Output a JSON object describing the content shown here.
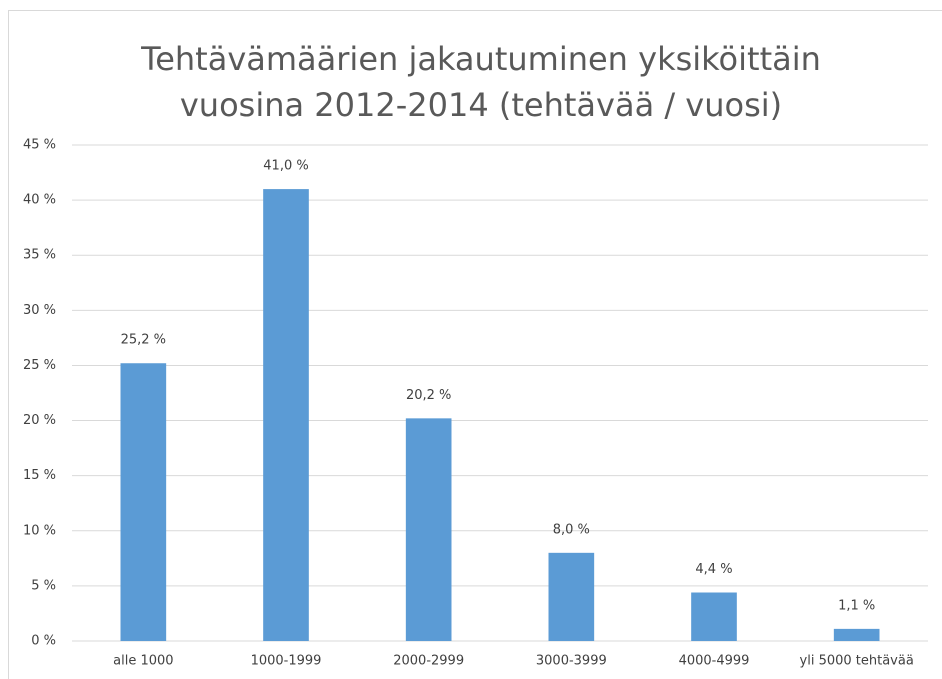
{
  "chart_data": {
    "type": "bar",
    "title": "Tehtävämäärien jakautuminen yksiköittäin vuosina 2012-2014 (tehtävää / vuosi)",
    "categories": [
      "alle 1000",
      "1000-1999",
      "2000-2999",
      "3000-3999",
      "4000-4999",
      "yli 5000 tehtävää"
    ],
    "values": [
      25.2,
      41.0,
      20.2,
      8.0,
      4.4,
      1.1
    ],
    "value_labels": [
      "25,2 %",
      "41,0 %",
      "20,2 %",
      "8,0 %",
      "4,4 %",
      "1,1 %"
    ],
    "color": "#5b9bd5",
    "ylim": [
      0,
      45
    ],
    "yticks": [
      {
        "value": 0,
        "label": "0 %"
      },
      {
        "value": 5,
        "label": "5 %"
      },
      {
        "value": 10,
        "label": "10 %"
      },
      {
        "value": 15,
        "label": "15 %"
      },
      {
        "value": 20,
        "label": "20 %"
      },
      {
        "value": 25,
        "label": "25 %"
      },
      {
        "value": 30,
        "label": "30 %"
      },
      {
        "value": 35,
        "label": "35 %"
      },
      {
        "value": 40,
        "label": "40 %"
      },
      {
        "value": 45,
        "label": "45 %"
      }
    ],
    "grid": true
  }
}
